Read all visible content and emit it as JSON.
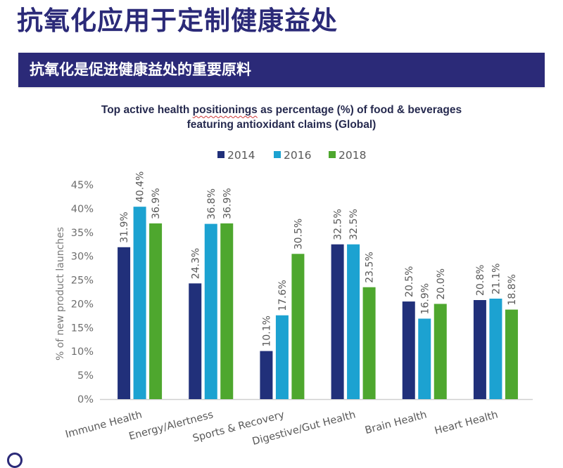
{
  "page": {
    "title": "抗氧化应用于定制健康益处",
    "banner": "抗氧化是促进健康益处的重要原料"
  },
  "colors": {
    "brand_navy": "#2b2a78",
    "series_2014": "#21307a",
    "series_2016": "#1ca2d1",
    "series_2018": "#4ea72e",
    "axis_text": "#595959"
  },
  "chart_data": {
    "type": "bar",
    "title_line1_before": "Top active health ",
    "title_line1_flagged": "positionings",
    "title_line1_after": " as percentage (%) of food & beverages",
    "title_line2": "featuring antioxidant claims (Global)",
    "xlabel": "",
    "ylabel": "% of new product launches",
    "ylim": [
      0,
      45
    ],
    "yticks": [
      "0%",
      "5%",
      "10%",
      "15%",
      "20%",
      "25%",
      "30%",
      "35%",
      "40%",
      "45%"
    ],
    "ytick_values": [
      0,
      5,
      10,
      15,
      20,
      25,
      30,
      35,
      40,
      45
    ],
    "grid": false,
    "legend_position": "top-center",
    "categories": [
      "Immune Health",
      "Energy/Alertness",
      "Sports & Recovery",
      "Digestive/Gut Health",
      "Brain Health",
      "Heart Health"
    ],
    "series": [
      {
        "name": "2014",
        "color": "#21307a",
        "values": [
          31.9,
          24.3,
          10.1,
          32.5,
          20.5,
          20.8
        ],
        "labels": [
          "31.9%",
          "24.3%",
          "10.1%",
          "32.5%",
          "20.5%",
          "20.8%"
        ]
      },
      {
        "name": "2016",
        "color": "#1ca2d1",
        "values": [
          40.4,
          36.8,
          17.6,
          32.5,
          16.9,
          21.1
        ],
        "labels": [
          "40.4%",
          "36.8%",
          "17.6%",
          "32.5%",
          "16.9%",
          "21.1%"
        ]
      },
      {
        "name": "2018",
        "color": "#4ea72e",
        "values": [
          36.9,
          36.9,
          30.5,
          23.5,
          20.0,
          18.8
        ],
        "labels": [
          "36.9%",
          "36.9%",
          "30.5%",
          "23.5%",
          "20.0%",
          "18.8%"
        ]
      }
    ]
  }
}
